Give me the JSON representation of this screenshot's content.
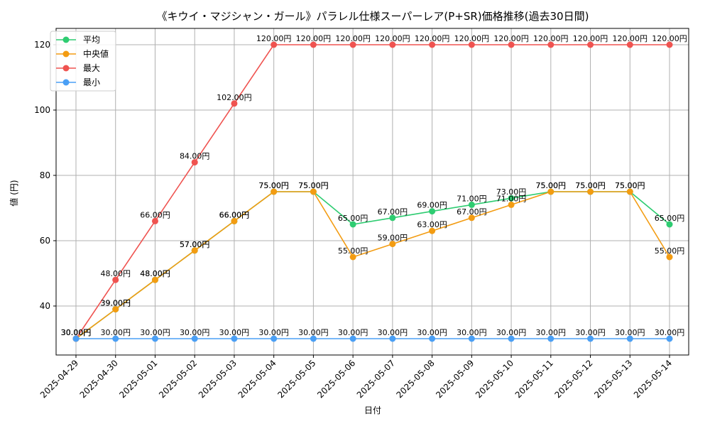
{
  "chart_data": {
    "type": "line",
    "title": "《キウイ・マジシャン・ガール》パラレル仕様スーパーレア(P+SR)価格推移(過去30日間)",
    "xlabel": "日付",
    "ylabel": "値 (円)",
    "categories": [
      "2025-04-29",
      "2025-04-30",
      "2025-05-01",
      "2025-05-02",
      "2025-05-03",
      "2025-05-04",
      "2025-05-05",
      "2025-05-06",
      "2025-05-07",
      "2025-05-08",
      "2025-05-09",
      "2025-05-10",
      "2025-05-11",
      "2025-05-12",
      "2025-05-13",
      "2025-05-14"
    ],
    "ylim": [
      25,
      125
    ],
    "yticks": [
      40,
      60,
      80,
      100,
      120
    ],
    "grid": true,
    "legend_position": "top-left",
    "value_suffix": "円",
    "series": [
      {
        "name": "平均",
        "color": "#2ecc71",
        "values": [
          30,
          39,
          48,
          57,
          66,
          75,
          75,
          65,
          67,
          69,
          71,
          73,
          75,
          75,
          75,
          65
        ]
      },
      {
        "name": "中央値",
        "color": "#f39c12",
        "values": [
          30,
          39,
          48,
          57,
          66,
          75,
          75,
          55,
          59,
          63,
          67,
          71,
          75,
          75,
          75,
          55
        ]
      },
      {
        "name": "最大",
        "color": "#ef5350",
        "values": [
          30,
          48,
          66,
          84,
          102,
          120,
          120,
          120,
          120,
          120,
          120,
          120,
          120,
          120,
          120,
          120
        ]
      },
      {
        "name": "最小",
        "color": "#4a9ff5",
        "values": [
          30,
          30,
          30,
          30,
          30,
          30,
          30,
          30,
          30,
          30,
          30,
          30,
          30,
          30,
          30,
          30
        ]
      }
    ]
  }
}
